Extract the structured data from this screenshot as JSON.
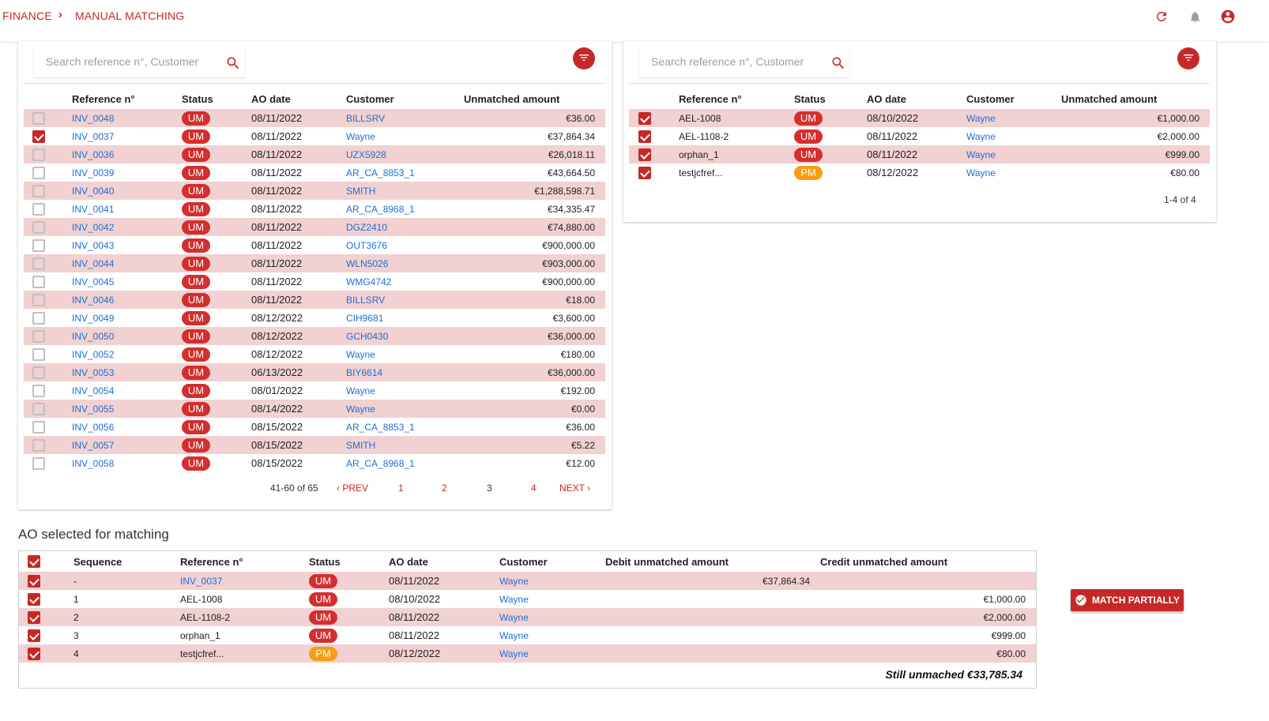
{
  "header": {
    "breadcrumb_root": "FINANCE",
    "breadcrumb_sep": "›",
    "breadcrumb_current": "MANUAL MATCHING"
  },
  "left_panel": {
    "search_placeholder": "Search reference n°, Customer",
    "columns": [
      "Reference n°",
      "Status",
      "AO date",
      "Customer",
      "Unmatched amount"
    ],
    "rows": [
      {
        "checked": false,
        "ref": "INV_0048",
        "status": "UM",
        "date": "08/11/2022",
        "customer": "BILLSRV",
        "amount": "€36.00"
      },
      {
        "checked": true,
        "ref": "INV_0037",
        "status": "UM",
        "date": "08/11/2022",
        "customer": "Wayne",
        "amount": "€37,864.34"
      },
      {
        "checked": false,
        "ref": "INV_0036",
        "status": "UM",
        "date": "08/11/2022",
        "customer": "UZX5928",
        "amount": "€26,018.11"
      },
      {
        "checked": false,
        "ref": "INV_0039",
        "status": "UM",
        "date": "08/11/2022",
        "customer": "AR_CA_8853_1",
        "amount": "€43,664.50"
      },
      {
        "checked": false,
        "ref": "INV_0040",
        "status": "UM",
        "date": "08/11/2022",
        "customer": "SMITH",
        "amount": "€1,288,598.71"
      },
      {
        "checked": false,
        "ref": "INV_0041",
        "status": "UM",
        "date": "08/11/2022",
        "customer": "AR_CA_8968_1",
        "amount": "€34,335.47"
      },
      {
        "checked": false,
        "ref": "INV_0042",
        "status": "UM",
        "date": "08/11/2022",
        "customer": "DGZ2410",
        "amount": "€74,880.00"
      },
      {
        "checked": false,
        "ref": "INV_0043",
        "status": "UM",
        "date": "08/11/2022",
        "customer": "OUT3676",
        "amount": "€900,000.00"
      },
      {
        "checked": false,
        "ref": "INV_0044",
        "status": "UM",
        "date": "08/11/2022",
        "customer": "WLN5026",
        "amount": "€903,000.00"
      },
      {
        "checked": false,
        "ref": "INV_0045",
        "status": "UM",
        "date": "08/11/2022",
        "customer": "WMG4742",
        "amount": "€900,000.00"
      },
      {
        "checked": false,
        "ref": "INV_0046",
        "status": "UM",
        "date": "08/11/2022",
        "customer": "BILLSRV",
        "amount": "€18.00"
      },
      {
        "checked": false,
        "ref": "INV_0049",
        "status": "UM",
        "date": "08/12/2022",
        "customer": "CIH9681",
        "amount": "€3,600.00"
      },
      {
        "checked": false,
        "ref": "INV_0050",
        "status": "UM",
        "date": "08/12/2022",
        "customer": "GCH0430",
        "amount": "€36,000.00"
      },
      {
        "checked": false,
        "ref": "INV_0052",
        "status": "UM",
        "date": "08/12/2022",
        "customer": "Wayne",
        "amount": "€180.00"
      },
      {
        "checked": false,
        "ref": "INV_0053",
        "status": "UM",
        "date": "06/13/2022",
        "customer": "BIY6614",
        "amount": "€36,000.00"
      },
      {
        "checked": false,
        "ref": "INV_0054",
        "status": "UM",
        "date": "08/01/2022",
        "customer": "Wayne",
        "amount": "€192.00"
      },
      {
        "checked": false,
        "ref": "INV_0055",
        "status": "UM",
        "date": "08/14/2022",
        "customer": "Wayne",
        "amount": "€0.00"
      },
      {
        "checked": false,
        "ref": "INV_0056",
        "status": "UM",
        "date": "08/15/2022",
        "customer": "AR_CA_8853_1",
        "amount": "€36.00"
      },
      {
        "checked": false,
        "ref": "INV_0057",
        "status": "UM",
        "date": "08/15/2022",
        "customer": "SMITH",
        "amount": "€5.22"
      },
      {
        "checked": false,
        "ref": "INV_0058",
        "status": "UM",
        "date": "08/15/2022",
        "customer": "AR_CA_8968_1",
        "amount": "€12.00"
      }
    ],
    "pagination": {
      "range": "41-60 of 65",
      "prev": "PREV",
      "pages": [
        "1",
        "2",
        "3",
        "4"
      ],
      "current_page": "3",
      "next": "NEXT"
    }
  },
  "right_panel": {
    "search_placeholder": "Search reference n°, Customer",
    "columns": [
      "Reference n°",
      "Status",
      "AO date",
      "Customer",
      "Unmatched amount"
    ],
    "rows": [
      {
        "checked": true,
        "ref": "AEL-1008",
        "status": "UM",
        "date": "08/10/2022",
        "customer": "Wayne",
        "amount": "€1,000.00"
      },
      {
        "checked": true,
        "ref": "AEL-1108-2",
        "status": "UM",
        "date": "08/11/2022",
        "customer": "Wayne",
        "amount": "€2,000.00"
      },
      {
        "checked": true,
        "ref": "orphan_1",
        "status": "UM",
        "date": "08/11/2022",
        "customer": "Wayne",
        "amount": "€999.00"
      },
      {
        "checked": true,
        "ref": "testjcfref...",
        "status": "PM",
        "date": "08/12/2022",
        "customer": "Wayne",
        "amount": "€80.00"
      }
    ],
    "range": "1-4 of 4"
  },
  "selected": {
    "title": "AO selected for matching",
    "columns": [
      "Sequence",
      "Reference n°",
      "Status",
      "AO date",
      "Customer",
      "Debit unmatched amount",
      "Credit unmatched amount"
    ],
    "rows": [
      {
        "seq": "-",
        "ref": "INV_0037",
        "ref_link": true,
        "status": "UM",
        "date": "08/11/2022",
        "customer": "Wayne",
        "debit": "€37,864.34",
        "credit": ""
      },
      {
        "seq": "1",
        "ref": "AEL-1008",
        "ref_link": false,
        "status": "UM",
        "date": "08/10/2022",
        "customer": "Wayne",
        "debit": "",
        "credit": "€1,000.00"
      },
      {
        "seq": "2",
        "ref": "AEL-1108-2",
        "ref_link": false,
        "status": "UM",
        "date": "08/11/2022",
        "customer": "Wayne",
        "debit": "",
        "credit": "€2,000.00"
      },
      {
        "seq": "3",
        "ref": "orphan_1",
        "ref_link": false,
        "status": "UM",
        "date": "08/11/2022",
        "customer": "Wayne",
        "debit": "",
        "credit": "€999.00"
      },
      {
        "seq": "4",
        "ref": "testjcfref...",
        "ref_link": false,
        "status": "PM",
        "date": "08/12/2022",
        "customer": "Wayne",
        "debit": "",
        "credit": "€80.00"
      }
    ],
    "still_unmatched": "Still unmached  €33,785.34",
    "match_button": "MATCH PARTIALLY"
  },
  "icons": {
    "refresh": "refresh-icon",
    "bell": "bell-icon",
    "account": "account-icon",
    "search": "search-icon",
    "filter": "filter-icon",
    "check_circle": "check-circle-icon"
  },
  "colors": {
    "accent": "#c62828",
    "row_highlight": "#f1d1d1",
    "link": "#1e6fd6",
    "badge_um": "#d32f2f",
    "badge_pm": "#fb9c12"
  }
}
